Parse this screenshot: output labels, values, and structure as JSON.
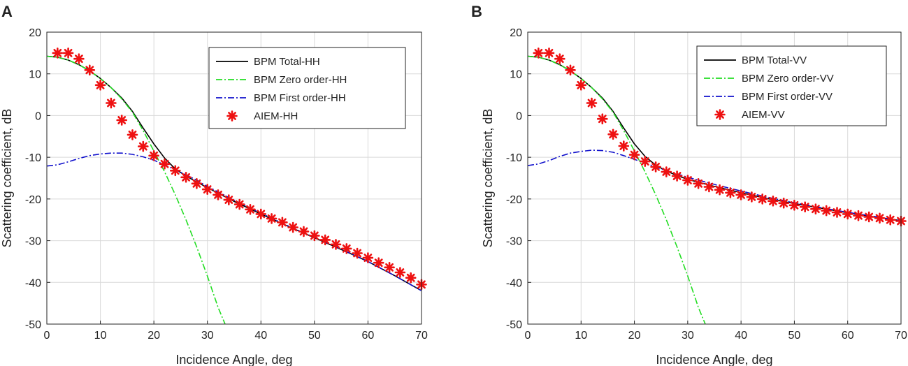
{
  "colors": {
    "total": "#000000",
    "zero": "#22dd22",
    "first": "#1111cc",
    "aiem": "#ee1111",
    "grid": "#d9d9d9",
    "axis": "#222222"
  },
  "chart_data": [
    {
      "panel": "A",
      "type": "line",
      "xlabel": "Incidence Angle, deg",
      "ylabel": "Scattering coefficient, dB",
      "xlim": [
        0,
        70
      ],
      "ylim": [
        -50,
        20
      ],
      "xticks": [
        0,
        10,
        20,
        30,
        40,
        50,
        60,
        70
      ],
      "yticks": [
        20,
        10,
        0,
        -10,
        -20,
        -30,
        -40,
        -50
      ],
      "grid": true,
      "legend_position": "top-right",
      "series": [
        {
          "name": "BPM Total-HH",
          "style": "solid",
          "color_key": "total",
          "x": [
            0,
            2,
            4,
            6,
            8,
            10,
            12,
            14,
            16,
            18,
            20,
            22,
            24,
            26,
            28,
            30,
            35,
            40,
            45,
            50,
            55,
            60,
            65,
            70
          ],
          "y": [
            14.2,
            14.0,
            13.3,
            12.2,
            10.7,
            8.9,
            6.7,
            4.2,
            1.0,
            -3.0,
            -6.8,
            -10.2,
            -12.8,
            -14.5,
            -15.9,
            -17.3,
            -20.6,
            -23.6,
            -26.5,
            -29.3,
            -32.1,
            -35.0,
            -38.4,
            -42.0
          ]
        },
        {
          "name": "BPM Zero order-HH",
          "style": "dashdot",
          "color_key": "zero",
          "x": [
            0,
            2,
            4,
            6,
            8,
            10,
            12,
            14,
            16,
            18,
            20,
            22,
            24,
            26,
            28,
            30,
            32,
            33.3
          ],
          "y": [
            14.2,
            14.0,
            13.3,
            12.2,
            10.7,
            8.9,
            6.7,
            4.0,
            0.8,
            -3.6,
            -8.5,
            -13.5,
            -19.0,
            -25.0,
            -31.5,
            -38.5,
            -46.0,
            -50.0
          ]
        },
        {
          "name": "BPM First order-HH",
          "style": "dashdot",
          "color_key": "first",
          "x": [
            0,
            2,
            4,
            6,
            8,
            10,
            12,
            14,
            16,
            18,
            20,
            22,
            24,
            26,
            28,
            30,
            35,
            40,
            45,
            50,
            55,
            60,
            65,
            70
          ],
          "y": [
            -12.1,
            -11.8,
            -11.1,
            -10.3,
            -9.6,
            -9.2,
            -9.0,
            -9.0,
            -9.3,
            -9.9,
            -10.7,
            -11.8,
            -13.0,
            -14.2,
            -15.5,
            -17.0,
            -20.3,
            -23.4,
            -26.4,
            -29.2,
            -32.0,
            -35.0,
            -38.4,
            -42.0
          ]
        },
        {
          "name": "AIEM-HH",
          "style": "marker",
          "color_key": "aiem",
          "x": [
            2,
            4,
            6,
            8,
            10,
            12,
            14,
            16,
            18,
            20,
            22,
            24,
            26,
            28,
            30,
            32,
            34,
            36,
            38,
            40,
            42,
            44,
            46,
            48,
            50,
            52,
            54,
            56,
            58,
            60,
            62,
            64,
            66,
            68,
            70
          ],
          "y": [
            15.0,
            15.0,
            13.6,
            10.9,
            7.3,
            3.0,
            -1.1,
            -4.6,
            -7.4,
            -9.6,
            -11.6,
            -13.2,
            -14.8,
            -16.3,
            -17.7,
            -19.0,
            -20.2,
            -21.3,
            -22.5,
            -23.6,
            -24.7,
            -25.6,
            -26.8,
            -27.8,
            -28.8,
            -29.8,
            -30.9,
            -31.9,
            -33.0,
            -34.1,
            -35.3,
            -36.4,
            -37.6,
            -38.9,
            -40.5
          ]
        }
      ]
    },
    {
      "panel": "B",
      "type": "line",
      "xlabel": "Incidence Angle, deg",
      "ylabel": "Scattering coefficient, dB",
      "xlim": [
        0,
        70
      ],
      "ylim": [
        -50,
        20
      ],
      "xticks": [
        0,
        10,
        20,
        30,
        40,
        50,
        60,
        70
      ],
      "yticks": [
        20,
        10,
        0,
        -10,
        -20,
        -30,
        -40,
        -50
      ],
      "grid": true,
      "legend_position": "top-right",
      "series": [
        {
          "name": "BPM Total-VV",
          "style": "solid",
          "color_key": "total",
          "x": [
            0,
            2,
            4,
            6,
            8,
            10,
            12,
            14,
            16,
            18,
            20,
            22,
            24,
            26,
            28,
            30,
            35,
            40,
            45,
            50,
            55,
            60,
            65,
            70
          ],
          "y": [
            14.2,
            14.0,
            13.3,
            12.2,
            10.7,
            8.9,
            6.7,
            4.2,
            1.0,
            -3.0,
            -6.8,
            -9.8,
            -11.9,
            -13.3,
            -14.4,
            -15.3,
            -17.0,
            -18.5,
            -19.9,
            -21.1,
            -22.2,
            -23.3,
            -24.3,
            -25.2
          ]
        },
        {
          "name": "BPM Zero order-VV",
          "style": "dashdot",
          "color_key": "zero",
          "x": [
            0,
            2,
            4,
            6,
            8,
            10,
            12,
            14,
            16,
            18,
            20,
            22,
            24,
            26,
            28,
            30,
            32,
            33.3
          ],
          "y": [
            14.2,
            14.0,
            13.3,
            12.2,
            10.7,
            8.9,
            6.7,
            4.0,
            0.8,
            -3.6,
            -8.5,
            -13.5,
            -19.0,
            -25.0,
            -31.5,
            -38.5,
            -46.0,
            -50.0
          ]
        },
        {
          "name": "BPM First order-VV",
          "style": "dashdot",
          "color_key": "first",
          "x": [
            0,
            2,
            4,
            6,
            8,
            10,
            12,
            14,
            16,
            18,
            20,
            22,
            24,
            26,
            28,
            30,
            35,
            40,
            45,
            50,
            55,
            60,
            65,
            70
          ],
          "y": [
            -12.0,
            -11.6,
            -10.8,
            -9.8,
            -9.0,
            -8.6,
            -8.3,
            -8.4,
            -8.8,
            -9.6,
            -10.5,
            -11.4,
            -12.3,
            -13.2,
            -14.0,
            -14.8,
            -16.5,
            -18.1,
            -19.6,
            -20.9,
            -22.1,
            -23.2,
            -24.2,
            -25.2
          ]
        },
        {
          "name": "AIEM-VV",
          "style": "marker",
          "color_key": "aiem",
          "x": [
            2,
            4,
            6,
            8,
            10,
            12,
            14,
            16,
            18,
            20,
            22,
            24,
            26,
            28,
            30,
            32,
            34,
            36,
            38,
            40,
            42,
            44,
            46,
            48,
            50,
            52,
            54,
            56,
            58,
            60,
            62,
            64,
            66,
            68,
            70
          ],
          "y": [
            15.0,
            15.0,
            13.6,
            10.9,
            7.3,
            3.0,
            -0.8,
            -4.5,
            -7.3,
            -9.4,
            -11.0,
            -12.3,
            -13.5,
            -14.5,
            -15.5,
            -16.3,
            -17.1,
            -17.8,
            -18.5,
            -19.0,
            -19.5,
            -20.0,
            -20.5,
            -21.0,
            -21.5,
            -21.9,
            -22.4,
            -22.8,
            -23.2,
            -23.6,
            -24.0,
            -24.3,
            -24.6,
            -25.0,
            -25.3
          ]
        }
      ]
    }
  ]
}
